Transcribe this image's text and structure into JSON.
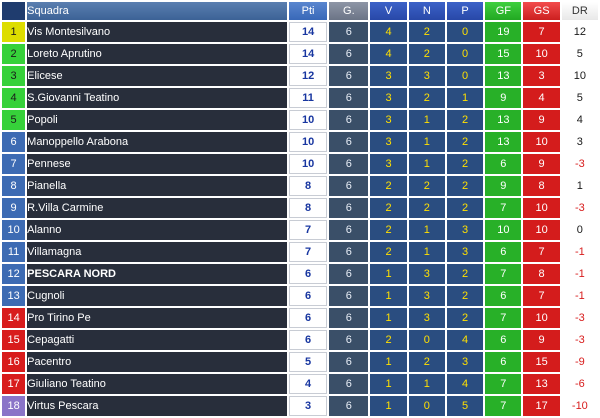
{
  "headers": {
    "pos": "",
    "team": "Squadra",
    "pti": "Pti",
    "g": "G.",
    "v": "V",
    "n": "N",
    "p": "P",
    "gf": "GF",
    "gs": "GS",
    "dr": "DR"
  },
  "colors": {
    "promo": "#dddd00",
    "playoff": "#36d13a",
    "mid": "#3d6bb3",
    "relegation": "#d81c1c",
    "last": "#8a74c8"
  },
  "rows": [
    {
      "pos": "1",
      "team": "Vis Montesilvano",
      "pti": "14",
      "g": "6",
      "v": "4",
      "n": "2",
      "p": "0",
      "gf": "19",
      "gs": "7",
      "dr": "12",
      "zone": "promo",
      "bold": false
    },
    {
      "pos": "2",
      "team": "Loreto Aprutino",
      "pti": "14",
      "g": "6",
      "v": "4",
      "n": "2",
      "p": "0",
      "gf": "15",
      "gs": "10",
      "dr": "5",
      "zone": "green",
      "bold": false
    },
    {
      "pos": "3",
      "team": "Elicese",
      "pti": "12",
      "g": "6",
      "v": "3",
      "n": "3",
      "p": "0",
      "gf": "13",
      "gs": "3",
      "dr": "10",
      "zone": "green",
      "bold": false
    },
    {
      "pos": "4",
      "team": "S.Giovanni Teatino",
      "pti": "11",
      "g": "6",
      "v": "3",
      "n": "2",
      "p": "1",
      "gf": "9",
      "gs": "4",
      "dr": "5",
      "zone": "green",
      "bold": false
    },
    {
      "pos": "5",
      "team": "Popoli",
      "pti": "10",
      "g": "6",
      "v": "3",
      "n": "1",
      "p": "2",
      "gf": "13",
      "gs": "9",
      "dr": "4",
      "zone": "green",
      "bold": false
    },
    {
      "pos": "6",
      "team": "Manoppello Arabona",
      "pti": "10",
      "g": "6",
      "v": "3",
      "n": "1",
      "p": "2",
      "gf": "13",
      "gs": "10",
      "dr": "3",
      "zone": "blue",
      "bold": false
    },
    {
      "pos": "7",
      "team": "Pennese",
      "pti": "10",
      "g": "6",
      "v": "3",
      "n": "1",
      "p": "2",
      "gf": "6",
      "gs": "9",
      "dr": "-3",
      "zone": "blue",
      "bold": false
    },
    {
      "pos": "8",
      "team": "Pianella",
      "pti": "8",
      "g": "6",
      "v": "2",
      "n": "2",
      "p": "2",
      "gf": "9",
      "gs": "8",
      "dr": "1",
      "zone": "blue",
      "bold": false
    },
    {
      "pos": "9",
      "team": "R.Villa Carmine",
      "pti": "8",
      "g": "6",
      "v": "2",
      "n": "2",
      "p": "2",
      "gf": "7",
      "gs": "10",
      "dr": "-3",
      "zone": "blue",
      "bold": false
    },
    {
      "pos": "10",
      "team": "Alanno",
      "pti": "7",
      "g": "6",
      "v": "2",
      "n": "1",
      "p": "3",
      "gf": "10",
      "gs": "10",
      "dr": "0",
      "zone": "blue",
      "bold": false
    },
    {
      "pos": "11",
      "team": "Villamagna",
      "pti": "7",
      "g": "6",
      "v": "2",
      "n": "1",
      "p": "3",
      "gf": "6",
      "gs": "7",
      "dr": "-1",
      "zone": "blue",
      "bold": false
    },
    {
      "pos": "12",
      "team": "PESCARA NORD",
      "pti": "6",
      "g": "6",
      "v": "1",
      "n": "3",
      "p": "2",
      "gf": "7",
      "gs": "8",
      "dr": "-1",
      "zone": "blue",
      "bold": true
    },
    {
      "pos": "13",
      "team": "Cugnoli",
      "pti": "6",
      "g": "6",
      "v": "1",
      "n": "3",
      "p": "2",
      "gf": "6",
      "gs": "7",
      "dr": "-1",
      "zone": "blue",
      "bold": false
    },
    {
      "pos": "14",
      "team": "Pro Tirino Pe",
      "pti": "6",
      "g": "6",
      "v": "1",
      "n": "3",
      "p": "2",
      "gf": "7",
      "gs": "10",
      "dr": "-3",
      "zone": "red",
      "bold": false
    },
    {
      "pos": "15",
      "team": "Cepagatti",
      "pti": "6",
      "g": "6",
      "v": "2",
      "n": "0",
      "p": "4",
      "gf": "6",
      "gs": "9",
      "dr": "-3",
      "zone": "red",
      "bold": false
    },
    {
      "pos": "16",
      "team": "Pacentro",
      "pti": "5",
      "g": "6",
      "v": "1",
      "n": "2",
      "p": "3",
      "gf": "6",
      "gs": "15",
      "dr": "-9",
      "zone": "red",
      "bold": false
    },
    {
      "pos": "17",
      "team": "Giuliano Teatino",
      "pti": "4",
      "g": "6",
      "v": "1",
      "n": "1",
      "p": "4",
      "gf": "7",
      "gs": "13",
      "dr": "-6",
      "zone": "red",
      "bold": false
    },
    {
      "pos": "18",
      "team": "Virtus Pescara",
      "pti": "3",
      "g": "6",
      "v": "1",
      "n": "0",
      "p": "5",
      "gf": "7",
      "gs": "17",
      "dr": "-10",
      "zone": "purple",
      "bold": false
    }
  ]
}
